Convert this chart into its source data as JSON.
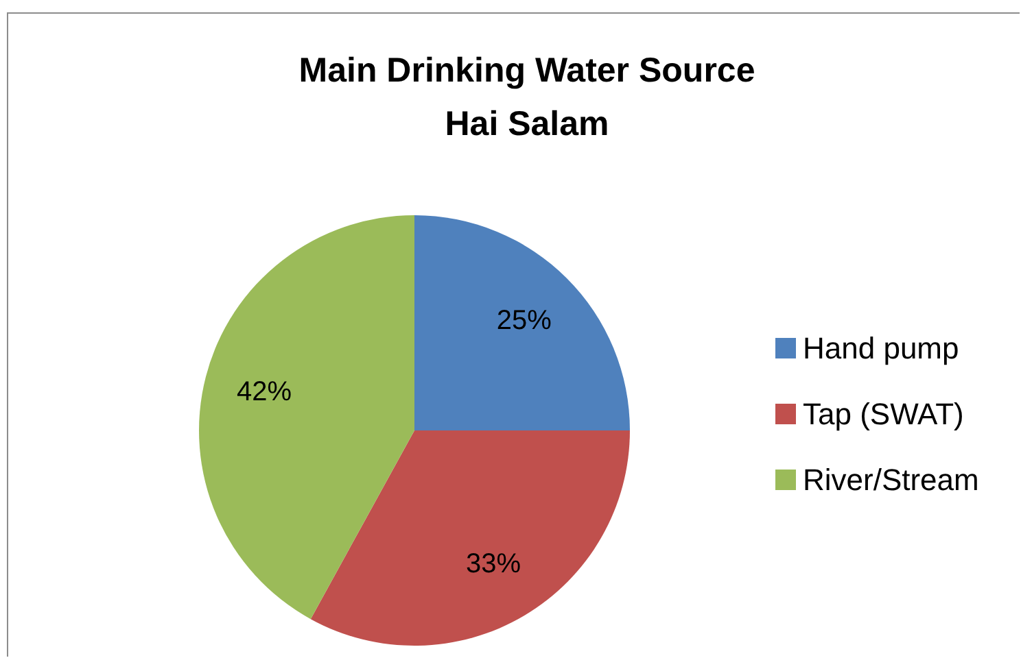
{
  "chart_data": {
    "type": "pie",
    "title": "Main Drinking Water Source",
    "subtitle": "Hai Salam",
    "categories": [
      "Hand pump",
      "Tap (SWAT)",
      "River/Stream"
    ],
    "values": [
      25,
      33,
      42
    ],
    "value_labels": [
      "25%",
      "33%",
      "42%"
    ],
    "colors": [
      "#4f81bd",
      "#c0504d",
      "#9bbb59"
    ],
    "legend": "right"
  }
}
